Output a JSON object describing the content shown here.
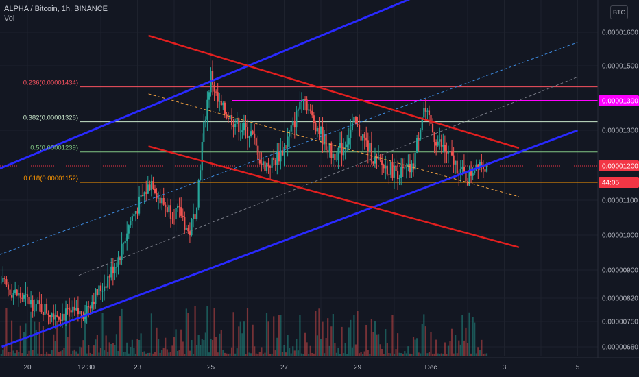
{
  "header": {
    "title": "ALPHA / Bitcoin, 1h, BINANCE",
    "indicator": "Vol"
  },
  "currency_button": "BTC",
  "price_axis": {
    "ticks": [
      {
        "label": "0.00001600",
        "value": 1600
      },
      {
        "label": "0.00001500",
        "value": 1500
      },
      {
        "label": "0.00001300",
        "value": 1300
      },
      {
        "label": "0.00001100",
        "value": 1100
      },
      {
        "label": "0.00001000",
        "value": 1000
      },
      {
        "label": "0.00000900",
        "value": 900
      },
      {
        "label": "0.00000820",
        "value": 820
      },
      {
        "label": "0.00000750",
        "value": 750
      },
      {
        "label": "0.00000680",
        "value": 680
      }
    ],
    "badges": [
      {
        "label": "0.00001390",
        "value": 1390,
        "color": "#ff00ff",
        "text_color": "#ffffff"
      },
      {
        "label": "0.00001200",
        "value": 1200,
        "color": "#f23645",
        "text_color": "#ffffff"
      },
      {
        "label": "44:05",
        "value": 1152,
        "color": "#f23645",
        "text_color": "#ffffff"
      }
    ]
  },
  "time_axis": {
    "ticks": [
      "20",
      "12:30",
      "23",
      "25",
      "27",
      "29",
      "Dec",
      "3",
      "5"
    ]
  },
  "fib_levels": [
    {
      "label": "0.236(0.00001434)",
      "value": 1434,
      "color": "#f7525f"
    },
    {
      "label": "0.382(0.00001326)",
      "value": 1326,
      "color": "#c8e6c9"
    },
    {
      "label": "0.5(0.00001239)",
      "value": 1239,
      "color": "#81c784"
    },
    {
      "label": "0.618(0.00001152)",
      "value": 1152,
      "color": "#ff9800"
    }
  ],
  "colors": {
    "background": "#131722",
    "grid": "#1e222d",
    "up": "#26a69a",
    "down": "#ef5350",
    "channel_blue": "#2929ff",
    "channel_red": "#e21f1f",
    "resistance": "#ff00ff",
    "dotted_price": "#f23645",
    "dashed_blue": "#3d8be0",
    "dashed_gray": "#787b86",
    "dashed_orange": "#f0a040"
  },
  "chart_data": {
    "type": "candlestick",
    "symbol": "ALPHA / Bitcoin",
    "interval": "1h",
    "exchange": "BINANCE",
    "last_price": 1200,
    "resistance_level": 1390,
    "close_path": [
      {
        "day": 19.0,
        "close": 940
      },
      {
        "day": 19.3,
        "close": 860
      },
      {
        "day": 19.7,
        "close": 830
      },
      {
        "day": 20.2,
        "close": 800
      },
      {
        "day": 20.6,
        "close": 780
      },
      {
        "day": 21.0,
        "close": 770
      },
      {
        "day": 21.5,
        "close": 775
      },
      {
        "day": 21.8,
        "close": 820
      },
      {
        "day": 22.1,
        "close": 860
      },
      {
        "day": 22.5,
        "close": 940
      },
      {
        "day": 22.8,
        "close": 1040
      },
      {
        "day": 23.1,
        "close": 1100
      },
      {
        "day": 23.4,
        "close": 1160
      },
      {
        "day": 23.6,
        "close": 1100
      },
      {
        "day": 23.9,
        "close": 1070
      },
      {
        "day": 24.2,
        "close": 1060
      },
      {
        "day": 24.4,
        "close": 1000
      },
      {
        "day": 24.6,
        "close": 1080
      },
      {
        "day": 24.8,
        "close": 1300
      },
      {
        "day": 25.0,
        "close": 1470
      },
      {
        "day": 25.2,
        "close": 1380
      },
      {
        "day": 25.5,
        "close": 1340
      },
      {
        "day": 25.8,
        "close": 1310
      },
      {
        "day": 26.1,
        "close": 1290
      },
      {
        "day": 26.4,
        "close": 1200
      },
      {
        "day": 26.7,
        "close": 1210
      },
      {
        "day": 27.0,
        "close": 1250
      },
      {
        "day": 27.3,
        "close": 1330
      },
      {
        "day": 27.5,
        "close": 1420
      },
      {
        "day": 27.7,
        "close": 1350
      },
      {
        "day": 28.0,
        "close": 1290
      },
      {
        "day": 28.3,
        "close": 1230
      },
      {
        "day": 28.6,
        "close": 1250
      },
      {
        "day": 28.9,
        "close": 1320
      },
      {
        "day": 29.2,
        "close": 1270
      },
      {
        "day": 29.5,
        "close": 1210
      },
      {
        "day": 29.9,
        "close": 1190
      },
      {
        "day": 30.2,
        "close": 1180
      },
      {
        "day": 30.5,
        "close": 1190
      },
      {
        "day": 30.8,
        "close": 1370
      },
      {
        "day": 31.1,
        "close": 1280
      },
      {
        "day": 31.4,
        "close": 1240
      },
      {
        "day": 31.7,
        "close": 1200
      },
      {
        "day": 32.0,
        "close": 1160
      },
      {
        "day": 32.3,
        "close": 1220
      },
      {
        "day": 32.5,
        "close": 1200
      }
    ]
  }
}
